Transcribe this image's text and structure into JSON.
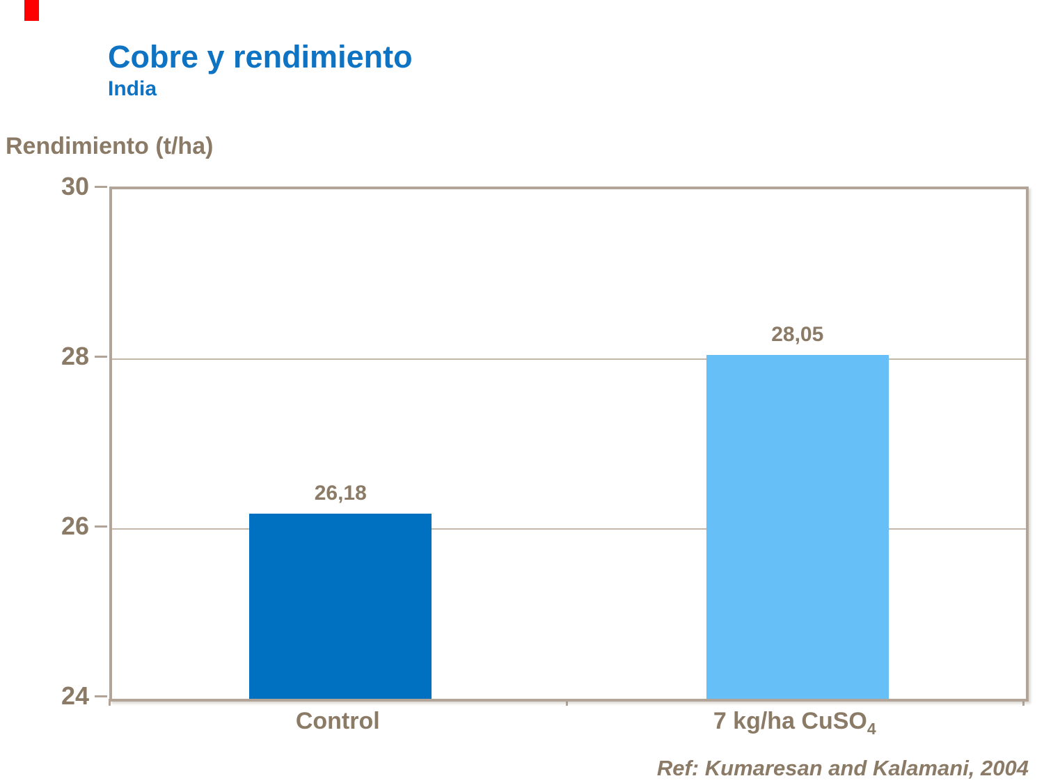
{
  "slide": {
    "background_color": "#FFFFFF",
    "accent_bar_color": "#FF0000"
  },
  "header": {
    "title": "Cobre y rendimiento",
    "subtitle": "India",
    "title_color": "#0D73C2"
  },
  "footer": {
    "reference": "Ref: Kumaresan and Kalamani, 2004"
  },
  "chart_data": {
    "type": "bar",
    "title": "Cobre y rendimiento",
    "subtitle": "India",
    "ylabel": "Rendimiento (t/ha)",
    "xlabel": "",
    "categories": [
      "Control",
      "7 kg/ha CuSO4"
    ],
    "categories_display": [
      {
        "base": "Control",
        "sub": ""
      },
      {
        "base": "7 kg/ha CuSO",
        "sub": "4"
      }
    ],
    "values": [
      26.18,
      28.05
    ],
    "value_labels": [
      "26,18",
      "28,05"
    ],
    "bar_colors": [
      "#0070C0",
      "#67BFF7"
    ],
    "ylim": [
      24,
      30
    ],
    "yticks": [
      24,
      26,
      28,
      30
    ],
    "grid": "horizontal",
    "legend": "none",
    "label_color": "#8A7A66",
    "frame_color": "#B2A496",
    "reference": "Ref: Kumaresan and Kalamani, 2004"
  }
}
